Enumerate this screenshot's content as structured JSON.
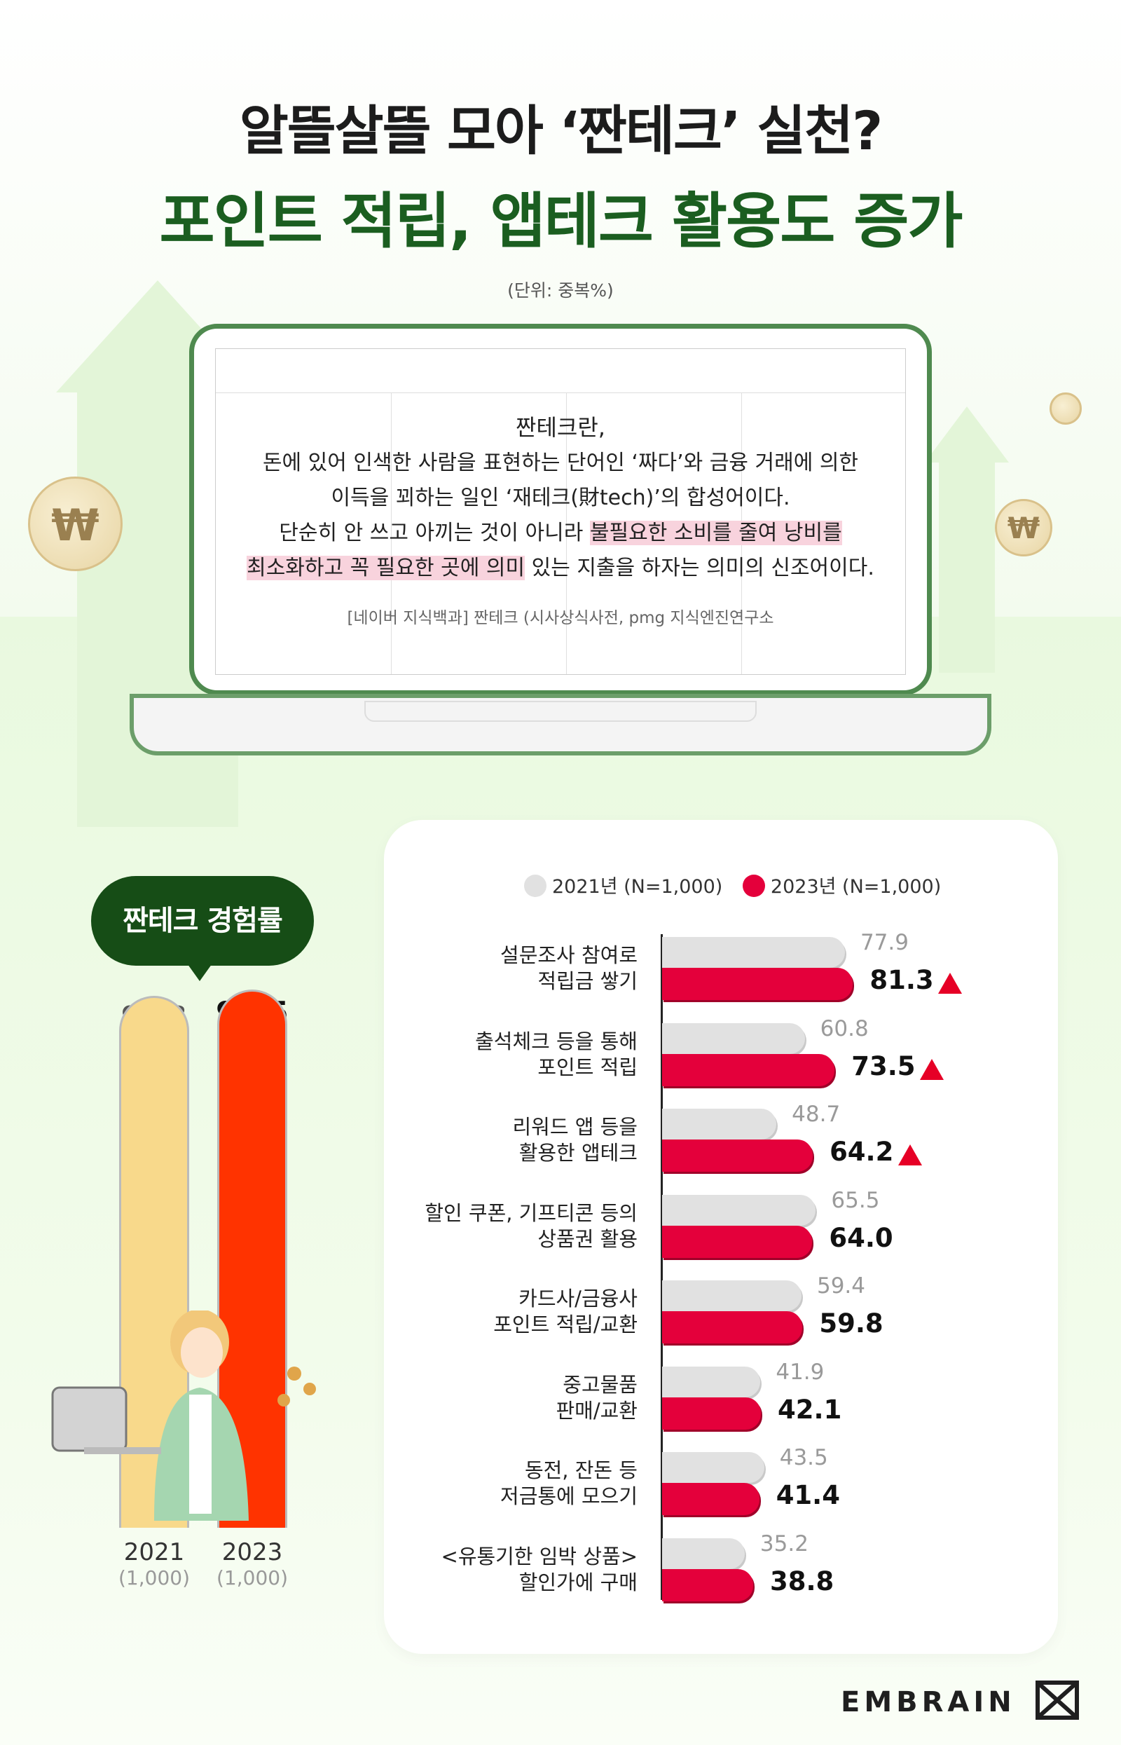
{
  "title_line1": "알뜰살뜰 모아 ‘짠테크’ 실천?",
  "title_line2": "포인트 적립, 앱테크 활용도 증가",
  "unit": "(단위: 중복%)",
  "definition": {
    "title": "짠테크란,",
    "line1": "돈에 있어 인색한 사람을 표현하는 단어인 ‘짜다’와 금융 거래에 의한",
    "line2": "이득을 꾀하는 일인 ‘재테크(財tech)’의 합성어이다.",
    "line3_pre": "단순히 안 쓰고 아끼는 것이 아니라 ",
    "line3_hl": "불필요한 소비를 줄여 낭비를",
    "line4_hl": "최소화하고 꼭 필요한 곳에 의미",
    "line4_post": " 있는 지출을 하자는 의미의 신조어이다.",
    "source": "[네이버 지식백과] 짠테크 (시사상식사전, pmg 지식엔진연구소"
  },
  "coin_symbol": "₩",
  "colors": {
    "y2021": "#e1e1e1",
    "y2023": "#e4003b",
    "exp2021": "#f8d98b",
    "exp2023": "#ff3300",
    "green": "#1b5e20"
  },
  "experience": {
    "label": "짠테크 경험률",
    "bars": [
      {
        "year": "2021",
        "n": "(1,000)",
        "value": 97.3,
        "value_label": "97.3"
      },
      {
        "year": "2023",
        "n": "(1,000)",
        "value": 98.5,
        "value_label": "98.5"
      }
    ]
  },
  "chart_data": {
    "type": "bar",
    "orientation": "horizontal",
    "legend": [
      "2021년 (N=1,000)",
      "2023년 (N=1,000)"
    ],
    "categories": [
      [
        "설문조사 참여로",
        "적립금 쌓기"
      ],
      [
        "출석체크 등을 통해",
        "포인트 적립"
      ],
      [
        "리워드 앱 등을",
        "활용한 앱테크"
      ],
      [
        "할인 쿠폰, 기프티콘 등의",
        "상품권 활용"
      ],
      [
        "카드사/금융사",
        "포인트 적립/교환"
      ],
      [
        "중고물품",
        "판매/교환"
      ],
      [
        "동전, 잔돈 등",
        "저금통에 모으기"
      ],
      [
        "<유통기한 임박 상품>",
        "할인가에 구매"
      ]
    ],
    "series": [
      {
        "name": "2021년 (N=1,000)",
        "values": [
          77.9,
          60.8,
          48.7,
          65.5,
          59.4,
          41.9,
          43.5,
          35.2
        ]
      },
      {
        "name": "2023년 (N=1,000)",
        "values": [
          81.3,
          73.5,
          64.2,
          64.0,
          59.8,
          42.1,
          41.4,
          38.8
        ]
      }
    ],
    "labels_2021": [
      "77.9",
      "60.8",
      "48.7",
      "65.5",
      "59.4",
      "41.9",
      "43.5",
      "35.2"
    ],
    "labels_2023": [
      "81.3",
      "73.5",
      "64.2",
      "64.0",
      "59.8",
      "42.1",
      "41.4",
      "38.8"
    ],
    "increase_marker": [
      true,
      true,
      true,
      false,
      false,
      false,
      false,
      false
    ]
  },
  "brand": "EMBRAIN"
}
